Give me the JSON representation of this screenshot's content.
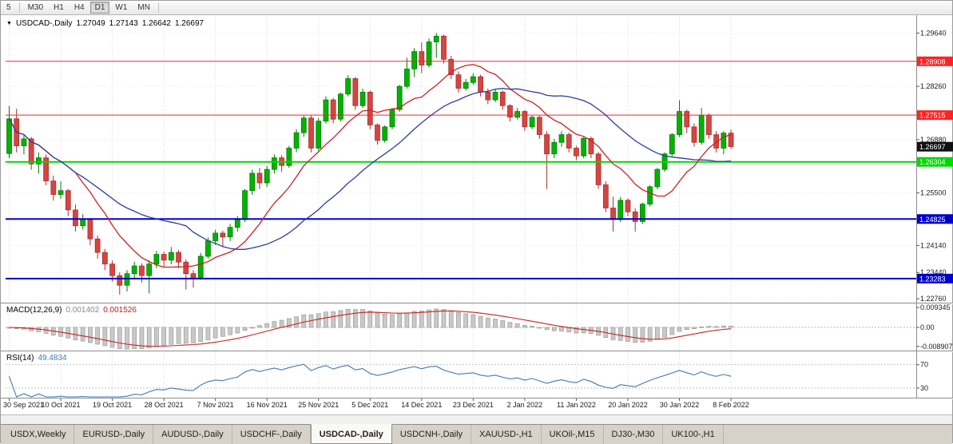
{
  "toolbar": {
    "timeframes": [
      "5",
      "M30",
      "H1",
      "H4",
      "D1",
      "W1",
      "MN"
    ],
    "active": "D1"
  },
  "chart_header": {
    "dropdown_icon": "▼",
    "symbol": "USDCAD-,Daily",
    "open": "1.27049",
    "high": "1.27143",
    "low": "1.26642",
    "close": "1.26697"
  },
  "price_axis": {
    "grid_labels": [
      "1.29640",
      "1.28260",
      "1.26880",
      "1.25500",
      "1.24140",
      "1.23440",
      "1.22760"
    ]
  },
  "hlines": [
    {
      "price": 1.28908,
      "label": "1.28908",
      "color": "#ff2222",
      "width": 1
    },
    {
      "price": 1.27515,
      "label": "1.27515",
      "color": "#ff2222",
      "width": 1
    },
    {
      "price": 1.26304,
      "label": "1.26304",
      "color": "#00d800",
      "width": 2
    },
    {
      "price": 1.24825,
      "label": "1.24825",
      "color": "#0000cc",
      "width": 2
    },
    {
      "price": 1.23283,
      "label": "1.23283",
      "color": "#0000cc",
      "width": 2
    }
  ],
  "current_price_tag": {
    "price": 1.26697,
    "label": "1.26697",
    "color": "#101010"
  },
  "chart_data": {
    "type": "candlestick",
    "symbol": "USDCAD-,Daily",
    "timeframe": "Daily",
    "ylim": [
      1.2268,
      1.3002
    ],
    "date_labels": [
      "30 Sep 2021",
      "10 Oct 2021",
      "19 Oct 2021",
      "28 Oct 2021",
      "7 Nov 2021",
      "16 Nov 2021",
      "25 Nov 2021",
      "5 Dec 2021",
      "14 Dec 2021",
      "23 Dec 2021",
      "2 Jan 2022",
      "11 Jan 2022",
      "20 Jan 2022",
      "30 Jan 2022",
      "8 Feb 2022"
    ],
    "candles_per_label": 7,
    "overlays": [
      {
        "name": "ma-fast",
        "type": "sma",
        "period": 10,
        "color": "#cc2222"
      },
      {
        "name": "ma-slow",
        "type": "sma",
        "period": 25,
        "color": "#2b3f9e"
      }
    ],
    "ohlc": [
      [
        1.2652,
        1.2775,
        1.264,
        1.2742
      ],
      [
        1.2742,
        1.2768,
        1.2655,
        1.2672
      ],
      [
        1.2672,
        1.27,
        1.265,
        1.269
      ],
      [
        1.269,
        1.2695,
        1.261,
        1.2625
      ],
      [
        1.2625,
        1.2655,
        1.26,
        1.2641
      ],
      [
        1.2641,
        1.265,
        1.257,
        1.2581
      ],
      [
        1.2581,
        1.2595,
        1.253,
        1.2546
      ],
      [
        1.2546,
        1.258,
        1.2535,
        1.2556
      ],
      [
        1.2556,
        1.256,
        1.249,
        1.2506
      ],
      [
        1.2506,
        1.252,
        1.245,
        1.2465
      ],
      [
        1.2465,
        1.2495,
        1.2455,
        1.2481
      ],
      [
        1.2481,
        1.2485,
        1.2415,
        1.2431
      ],
      [
        1.2431,
        1.244,
        1.238,
        1.2396
      ],
      [
        1.2396,
        1.2405,
        1.235,
        1.2366
      ],
      [
        1.2366,
        1.2375,
        1.232,
        1.2336
      ],
      [
        1.2336,
        1.2345,
        1.2287,
        1.2311
      ],
      [
        1.2311,
        1.235,
        1.2295,
        1.2341
      ],
      [
        1.2341,
        1.2372,
        1.233,
        1.2361
      ],
      [
        1.2361,
        1.2368,
        1.2318,
        1.2336
      ],
      [
        1.2336,
        1.2375,
        1.229,
        1.2366
      ],
      [
        1.2366,
        1.24,
        1.2355,
        1.2391
      ],
      [
        1.2391,
        1.2398,
        1.236,
        1.2376
      ],
      [
        1.2376,
        1.241,
        1.2365,
        1.2396
      ],
      [
        1.2396,
        1.2402,
        1.2355,
        1.2371
      ],
      [
        1.2371,
        1.2378,
        1.23,
        1.2341
      ],
      [
        1.2341,
        1.235,
        1.2305,
        1.2331
      ],
      [
        1.2331,
        1.2395,
        1.2325,
        1.2386
      ],
      [
        1.2386,
        1.2435,
        1.238,
        1.2426
      ],
      [
        1.2426,
        1.2455,
        1.2415,
        1.2446
      ],
      [
        1.2446,
        1.2452,
        1.241,
        1.2436
      ],
      [
        1.2436,
        1.247,
        1.2425,
        1.2461
      ],
      [
        1.2461,
        1.249,
        1.245,
        1.2481
      ],
      [
        1.2481,
        1.256,
        1.2475,
        1.2556
      ],
      [
        1.2556,
        1.261,
        1.2545,
        1.2601
      ],
      [
        1.2601,
        1.2615,
        1.256,
        1.2576
      ],
      [
        1.2576,
        1.262,
        1.2565,
        1.2611
      ],
      [
        1.2611,
        1.265,
        1.26,
        1.2641
      ],
      [
        1.2641,
        1.2648,
        1.2605,
        1.2621
      ],
      [
        1.2621,
        1.2672,
        1.2615,
        1.2666
      ],
      [
        1.2666,
        1.2715,
        1.2655,
        1.2706
      ],
      [
        1.2706,
        1.275,
        1.2695,
        1.2744
      ],
      [
        1.2744,
        1.275,
        1.2655,
        1.2666
      ],
      [
        1.2666,
        1.2744,
        1.266,
        1.2736
      ],
      [
        1.2736,
        1.28,
        1.273,
        1.2791
      ],
      [
        1.2791,
        1.2796,
        1.273,
        1.2741
      ],
      [
        1.2741,
        1.281,
        1.2735,
        1.2806
      ],
      [
        1.2806,
        1.2855,
        1.28,
        1.2846
      ],
      [
        1.2846,
        1.285,
        1.2765,
        1.2776
      ],
      [
        1.2776,
        1.282,
        1.277,
        1.2811
      ],
      [
        1.2811,
        1.2815,
        1.2715,
        1.2726
      ],
      [
        1.2726,
        1.273,
        1.2675,
        1.2686
      ],
      [
        1.2686,
        1.2725,
        1.268,
        1.2721
      ],
      [
        1.2721,
        1.277,
        1.2715,
        1.2766
      ],
      [
        1.2766,
        1.283,
        1.276,
        1.2826
      ],
      [
        1.2826,
        1.29,
        1.282,
        1.2871
      ],
      [
        1.2871,
        1.2925,
        1.285,
        1.2916
      ],
      [
        1.2916,
        1.294,
        1.286,
        1.2881
      ],
      [
        1.2881,
        1.295,
        1.2875,
        1.2941
      ],
      [
        1.2941,
        1.2964,
        1.29,
        1.2956
      ],
      [
        1.2956,
        1.296,
        1.2885,
        1.2896
      ],
      [
        1.2896,
        1.2905,
        1.2845,
        1.2856
      ],
      [
        1.2856,
        1.2865,
        1.281,
        1.2821
      ],
      [
        1.2821,
        1.2845,
        1.2815,
        1.2836
      ],
      [
        1.2836,
        1.286,
        1.283,
        1.2851
      ],
      [
        1.2851,
        1.2856,
        1.28,
        1.2811
      ],
      [
        1.2811,
        1.282,
        1.278,
        1.2791
      ],
      [
        1.2791,
        1.2818,
        1.2785,
        1.2811
      ],
      [
        1.2811,
        1.2815,
        1.2765,
        1.2776
      ],
      [
        1.2776,
        1.278,
        1.2735,
        1.2746
      ],
      [
        1.2746,
        1.277,
        1.274,
        1.2761
      ],
      [
        1.2761,
        1.2765,
        1.271,
        1.2721
      ],
      [
        1.2721,
        1.275,
        1.2715,
        1.2746
      ],
      [
        1.2746,
        1.275,
        1.269,
        1.2701
      ],
      [
        1.2701,
        1.271,
        1.256,
        1.2651
      ],
      [
        1.2651,
        1.269,
        1.264,
        1.2681
      ],
      [
        1.2681,
        1.271,
        1.267,
        1.2701
      ],
      [
        1.2701,
        1.2706,
        1.2655,
        1.2666
      ],
      [
        1.2666,
        1.2672,
        1.2635,
        1.2646
      ],
      [
        1.2646,
        1.2695,
        1.264,
        1.2691
      ],
      [
        1.2691,
        1.2696,
        1.264,
        1.2651
      ],
      [
        1.2651,
        1.2656,
        1.256,
        1.2571
      ],
      [
        1.2571,
        1.258,
        1.25,
        1.2511
      ],
      [
        1.2511,
        1.254,
        1.245,
        1.2481
      ],
      [
        1.2481,
        1.254,
        1.2475,
        1.2531
      ],
      [
        1.2531,
        1.2536,
        1.249,
        1.2501
      ],
      [
        1.2501,
        1.251,
        1.245,
        1.2476
      ],
      [
        1.2476,
        1.2525,
        1.247,
        1.2521
      ],
      [
        1.2521,
        1.257,
        1.2515,
        1.2566
      ],
      [
        1.2566,
        1.2615,
        1.256,
        1.2611
      ],
      [
        1.2611,
        1.2655,
        1.2605,
        1.2651
      ],
      [
        1.2651,
        1.2705,
        1.2645,
        1.2701
      ],
      [
        1.2701,
        1.279,
        1.2695,
        1.2761
      ],
      [
        1.2761,
        1.2766,
        1.2705,
        1.2721
      ],
      [
        1.2721,
        1.273,
        1.267,
        1.2681
      ],
      [
        1.2681,
        1.277,
        1.2675,
        1.2751
      ],
      [
        1.2751,
        1.2756,
        1.269,
        1.2701
      ],
      [
        1.2701,
        1.271,
        1.2655,
        1.2666
      ],
      [
        1.2666,
        1.271,
        1.265,
        1.2705
      ],
      [
        1.2705,
        1.2714,
        1.2664,
        1.267
      ]
    ]
  },
  "macd_panel": {
    "label": "MACD(12,26,9)",
    "main_value": "0.001402",
    "signal_value": "0.001526",
    "axis_labels": [
      "0.009345",
      "0.00",
      "-0.008907"
    ],
    "ylim": [
      -0.0105,
      0.0105
    ],
    "params": {
      "fast": 12,
      "slow": 26,
      "signal": 9
    }
  },
  "rsi_panel": {
    "label": "RSI(14)",
    "value": "49.4834",
    "period": 14,
    "levels": [
      "70",
      "30"
    ],
    "ylim": [
      15,
      90
    ]
  },
  "tabs": {
    "items": [
      "USDX,Weekly",
      "EURUSD-,Daily",
      "AUDUSD-,Daily",
      "USDCHF-,Daily",
      "USDCAD-,Daily",
      "USDCNH-,Daily",
      "XAUUSD-,H1",
      "UKOil-,M15",
      "DJ30-,M30",
      "UK100-,H1"
    ],
    "active_index": 4
  },
  "colors": {
    "bull": "#00b300",
    "bull_stroke": "#007a00",
    "bear": "#d64541",
    "bear_stroke": "#a32f2c",
    "macd_bar": "#c9c9c9",
    "macd_bar_stroke": "#9a9a9a",
    "macd_signal": "#cc2222",
    "rsi_line": "#4579b2",
    "grid": "#dadada",
    "axis_text": "#1a1a1a"
  }
}
